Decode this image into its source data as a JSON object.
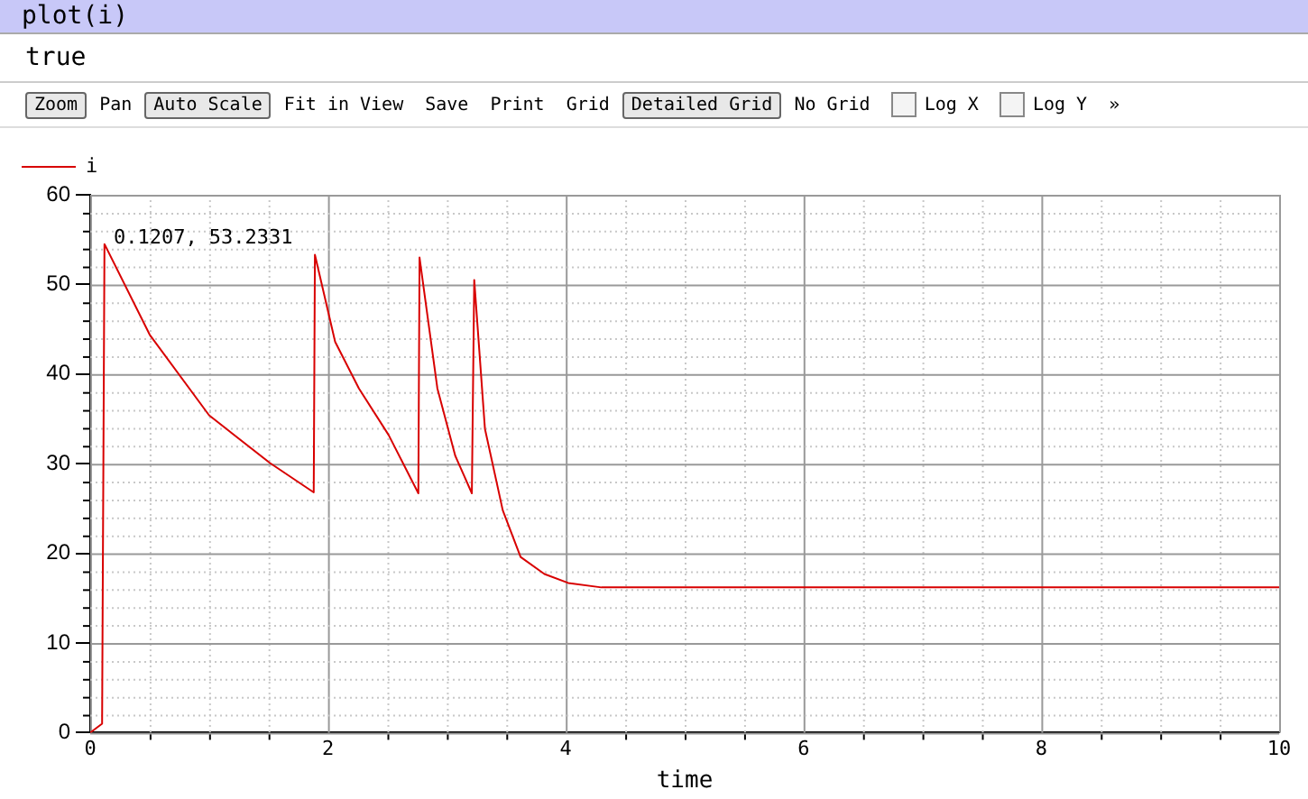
{
  "chart_data": {
    "type": "line",
    "xlabel": "time",
    "xlim": [
      0,
      10
    ],
    "xticks": [
      0,
      2,
      4,
      6,
      8,
      10
    ],
    "ylim": [
      0,
      60
    ],
    "yticks": [
      0,
      10,
      20,
      30,
      40,
      50,
      60
    ],
    "grid": true,
    "legend": "top left",
    "marker": "none",
    "line_style": "solid",
    "series": [
      {
        "name": "i",
        "color": "#d80000",
        "x": [
          0,
          0.1,
          0.12,
          0.5,
          1.0,
          1.51,
          1.88,
          1.89,
          2.06,
          2.26,
          2.51,
          2.76,
          2.77,
          2.92,
          3.07,
          3.21,
          3.23,
          3.32,
          3.47,
          3.62,
          3.82,
          4.02,
          4.3,
          10
        ],
        "values": [
          0,
          1,
          54.5,
          44.4,
          35.4,
          30.1,
          26.8,
          53.3,
          43.6,
          38.4,
          33.2,
          26.7,
          53,
          38.4,
          30.9,
          26.7,
          50.5,
          33.9,
          24.8,
          19.6,
          17.7,
          16.7,
          16.2,
          16.2
        ]
      }
    ],
    "annotations": [
      "plot(i)",
      "true",
      "Zoom",
      "Pan",
      "Auto Scale",
      "Fit in View",
      "Save",
      "Print",
      "Grid",
      "Detailed Grid",
      "No Grid",
      "Log X",
      "Log Y",
      "»",
      {
        "text": "0.1207, 53.2331",
        "x": 0.1207,
        "y": 53.2331
      }
    ]
  }
}
